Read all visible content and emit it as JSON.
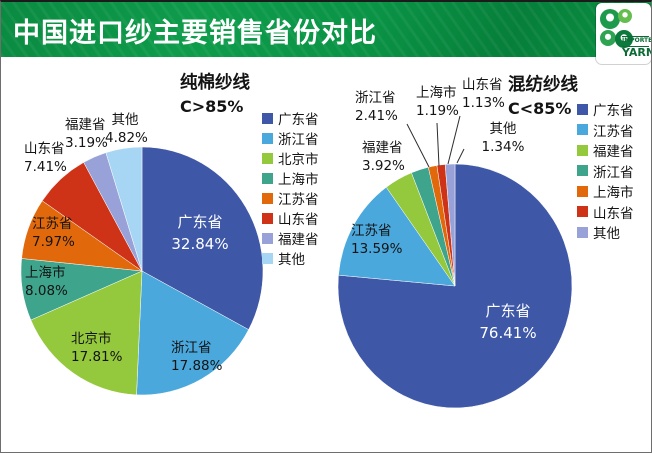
{
  "header": {
    "title": "中国进口纱主要销售省份对比",
    "logo": {
      "line1": "IMPORTED",
      "line2": "YARN"
    }
  },
  "chart_data": [
    {
      "type": "pie",
      "title": "纯棉纱线",
      "subtitle": "C>85%",
      "legend_position": "right",
      "start_angle_deg": 0,
      "direction": "clockwise",
      "categories": [
        "广东省",
        "浙江省",
        "北京市",
        "上海市",
        "江苏省",
        "山东省",
        "福建省",
        "其他"
      ],
      "values": [
        32.84,
        17.88,
        17.81,
        8.08,
        7.97,
        7.41,
        3.19,
        4.82
      ],
      "labels": [
        "32.84%",
        "17.88%",
        "17.81%",
        "8.08%",
        "7.97%",
        "7.41%",
        "3.19%",
        "4.82%"
      ],
      "colors": [
        "#3E57A7",
        "#4AA8DC",
        "#94C83D",
        "#3EA48C",
        "#E2690B",
        "#CF3317",
        "#98A2D8",
        "#A6D6F3"
      ]
    },
    {
      "type": "pie",
      "title": "混纺纱线",
      "subtitle": "C<85%",
      "legend_position": "right",
      "start_angle_deg": 0,
      "direction": "clockwise",
      "categories": [
        "广东省",
        "江苏省",
        "福建省",
        "浙江省",
        "上海市",
        "山东省",
        "其他"
      ],
      "values": [
        76.41,
        13.59,
        3.92,
        2.41,
        1.19,
        1.13,
        1.34
      ],
      "labels": [
        "76.41%",
        "13.59%",
        "3.92%",
        "2.41%",
        "1.19%",
        "1.13%",
        "1.34%"
      ],
      "colors": [
        "#3E57A7",
        "#4AA8DC",
        "#94C83D",
        "#3EA48C",
        "#E2690B",
        "#CF3317",
        "#98A2D8"
      ]
    }
  ]
}
